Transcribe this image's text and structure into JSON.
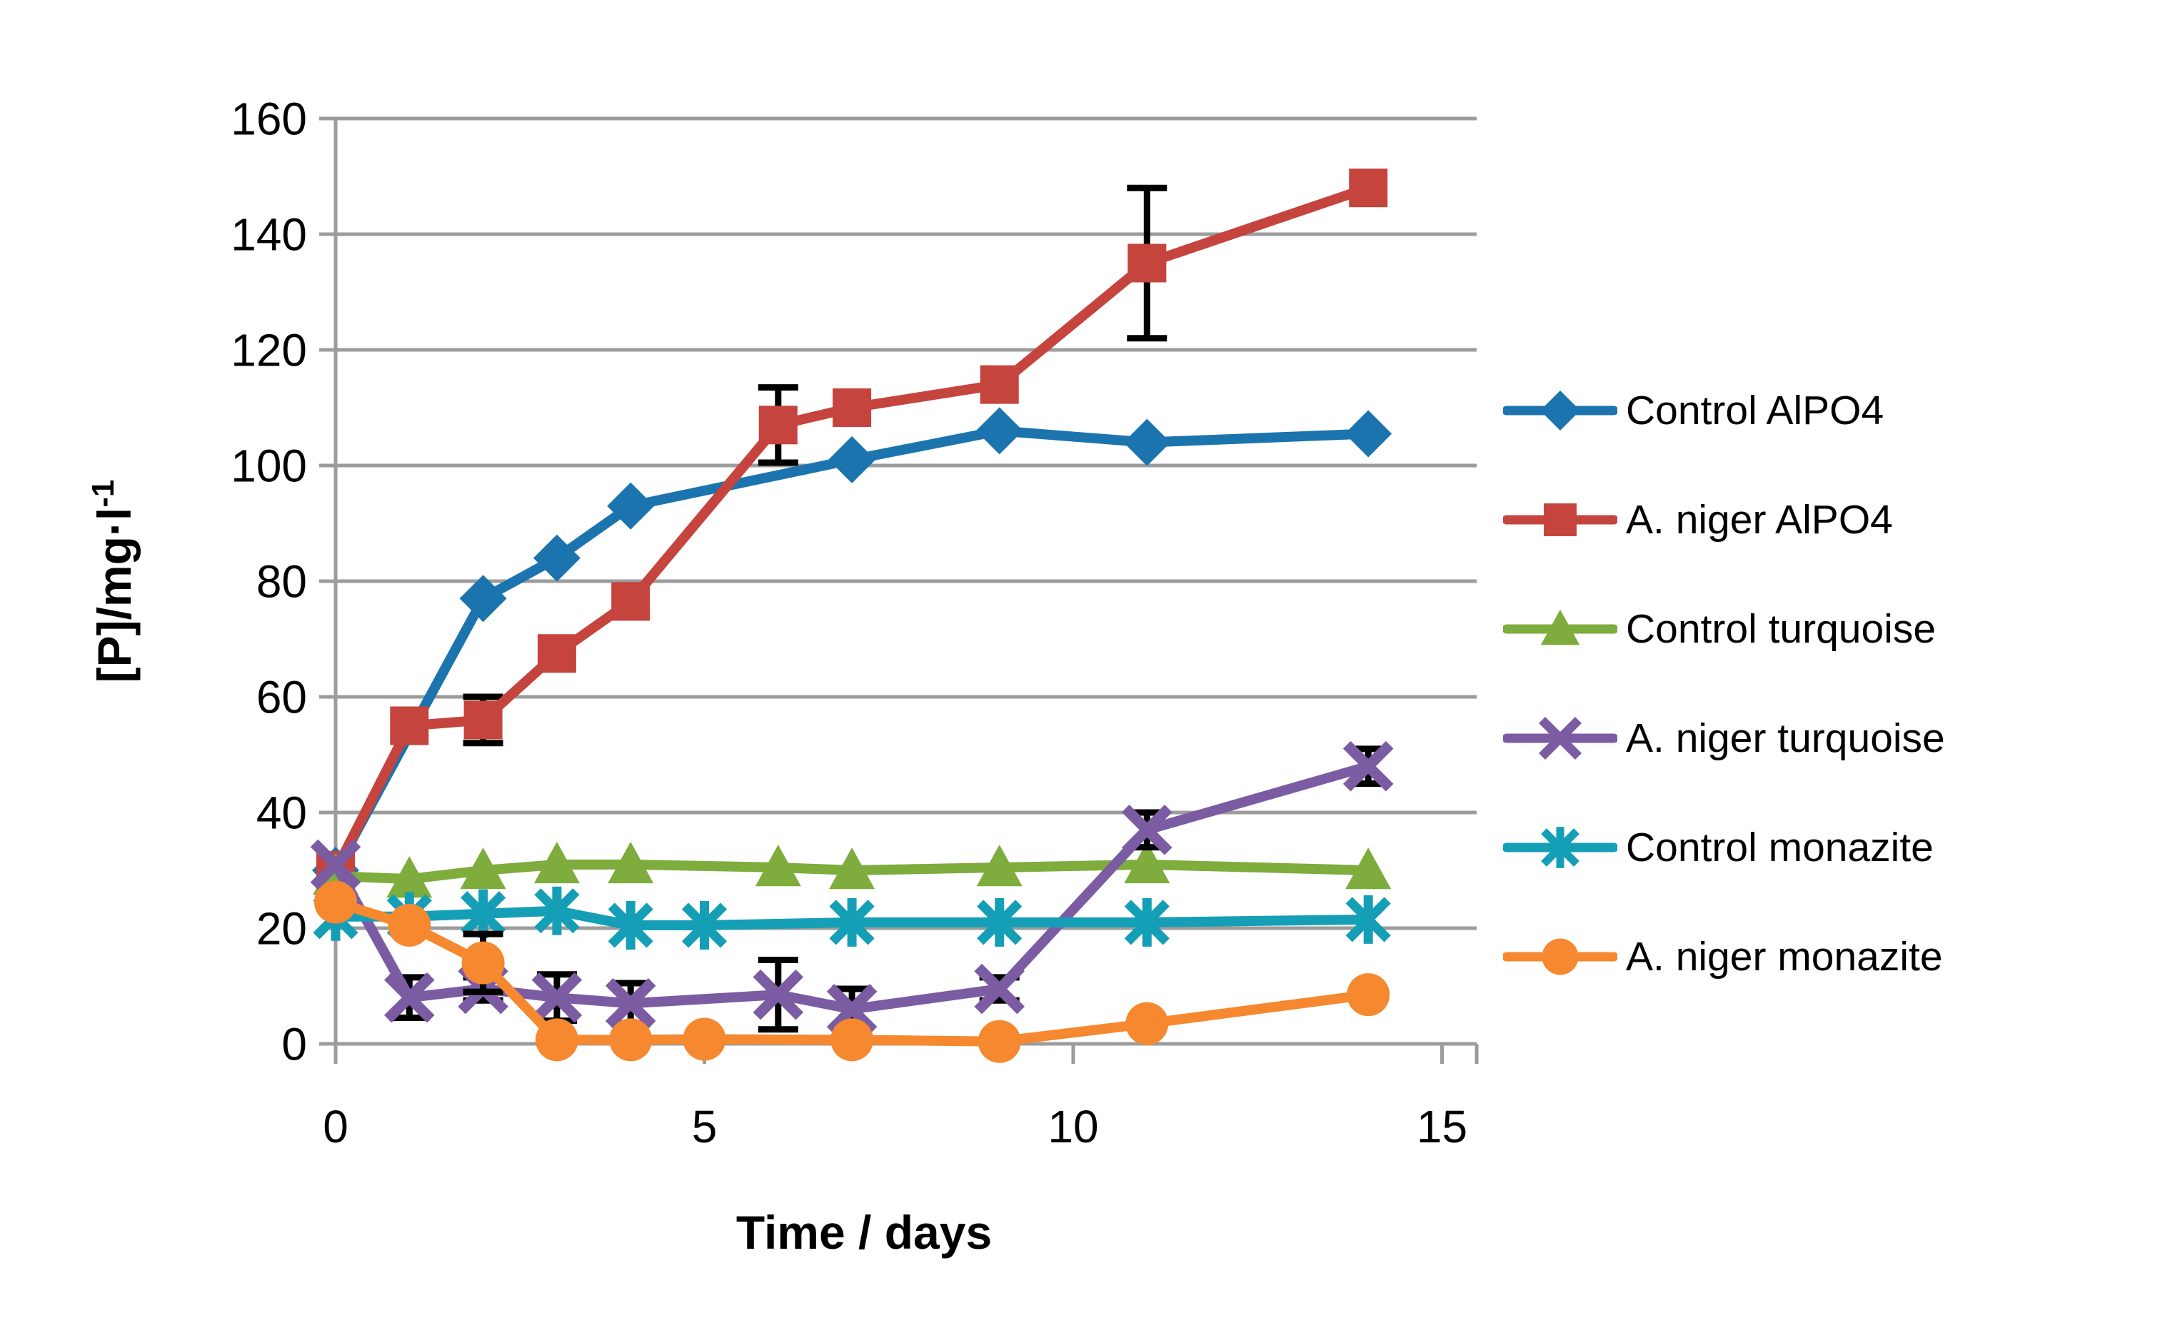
{
  "chart_data": {
    "type": "line",
    "title": "",
    "xlabel": "Time / days",
    "ylabel": "[P]/mg·l-1",
    "ylabel_base": "[P]/mg·l",
    "ylabel_exponent": "-1",
    "xlim": [
      0,
      15.5
    ],
    "ylim": [
      0,
      160
    ],
    "x_ticks": [
      0,
      5,
      10,
      15
    ],
    "y_ticks": [
      0,
      20,
      40,
      60,
      80,
      100,
      120,
      140,
      160
    ],
    "grid": "horizontal",
    "legend_position": "right",
    "series": [
      {
        "name": "Control AlPO4",
        "color": "#1B74AE",
        "marker": "diamond",
        "points": [
          {
            "x": 0,
            "y": 30
          },
          {
            "x": 2,
            "y": 77
          },
          {
            "x": 3,
            "y": 84
          },
          {
            "x": 4,
            "y": 93
          },
          {
            "x": 7,
            "y": 101
          },
          {
            "x": 9,
            "y": 106
          },
          {
            "x": 11,
            "y": 104
          },
          {
            "x": 14,
            "y": 105.5
          }
        ]
      },
      {
        "name": "A. niger AlPO4",
        "color": "#C5443D",
        "marker": "square",
        "points": [
          {
            "x": 0,
            "y": 30
          },
          {
            "x": 1,
            "y": 55
          },
          {
            "x": 2,
            "y": 56,
            "err": 4
          },
          {
            "x": 3,
            "y": 67.5
          },
          {
            "x": 4,
            "y": 76.5
          },
          {
            "x": 6,
            "y": 107,
            "err": 6.5
          },
          {
            "x": 7,
            "y": 110
          },
          {
            "x": 9,
            "y": 114
          },
          {
            "x": 11,
            "y": 135,
            "err": 13
          },
          {
            "x": 14,
            "y": 148
          }
        ]
      },
      {
        "name": "Control turquoise",
        "color": "#7EAC3D",
        "marker": "triangle",
        "points": [
          {
            "x": 0,
            "y": 29
          },
          {
            "x": 1,
            "y": 28.5
          },
          {
            "x": 2,
            "y": 30
          },
          {
            "x": 3,
            "y": 31
          },
          {
            "x": 4,
            "y": 31
          },
          {
            "x": 6,
            "y": 30.5
          },
          {
            "x": 7,
            "y": 30
          },
          {
            "x": 9,
            "y": 30.5
          },
          {
            "x": 11,
            "y": 31
          },
          {
            "x": 14,
            "y": 30
          }
        ]
      },
      {
        "name": "A. niger turquoise",
        "color": "#7B5CA3",
        "marker": "x",
        "points": [
          {
            "x": 0,
            "y": 31
          },
          {
            "x": 1,
            "y": 8,
            "err": 3.5
          },
          {
            "x": 2,
            "y": 9.5,
            "err": 2
          },
          {
            "x": 3,
            "y": 8,
            "err": 4
          },
          {
            "x": 4,
            "y": 7,
            "err": 3.5
          },
          {
            "x": 6,
            "y": 8.5,
            "err": 6
          },
          {
            "x": 7,
            "y": 6,
            "err": 3.5
          },
          {
            "x": 9,
            "y": 9.5,
            "err": 2
          },
          {
            "x": 11,
            "y": 37,
            "err": 3
          },
          {
            "x": 14,
            "y": 48,
            "err": 3
          }
        ]
      },
      {
        "name": "Control monazite",
        "color": "#159FB6",
        "marker": "asterisk",
        "points": [
          {
            "x": 0,
            "y": 22
          },
          {
            "x": 1,
            "y": 22
          },
          {
            "x": 2,
            "y": 22.5
          },
          {
            "x": 3,
            "y": 23
          },
          {
            "x": 4,
            "y": 20.5
          },
          {
            "x": 5,
            "y": 20.5
          },
          {
            "x": 7,
            "y": 21
          },
          {
            "x": 9,
            "y": 21
          },
          {
            "x": 11,
            "y": 21
          },
          {
            "x": 14,
            "y": 21.5
          }
        ]
      },
      {
        "name": "A. niger monazite",
        "color": "#F6882F",
        "marker": "circle",
        "points": [
          {
            "x": 0,
            "y": 24.5
          },
          {
            "x": 1,
            "y": 20.5
          },
          {
            "x": 2,
            "y": 14,
            "err": 5
          },
          {
            "x": 3,
            "y": 0.7
          },
          {
            "x": 4,
            "y": 0.7
          },
          {
            "x": 5,
            "y": 0.8
          },
          {
            "x": 7,
            "y": 0.7
          },
          {
            "x": 9,
            "y": 0.4
          },
          {
            "x": 11,
            "y": 3.5
          },
          {
            "x": 14,
            "y": 8.5
          }
        ]
      }
    ]
  },
  "colors": {
    "gridline": "#9C9C9C",
    "error_bar": "#000000",
    "text": "#000000",
    "background": "#FFFFFF"
  }
}
